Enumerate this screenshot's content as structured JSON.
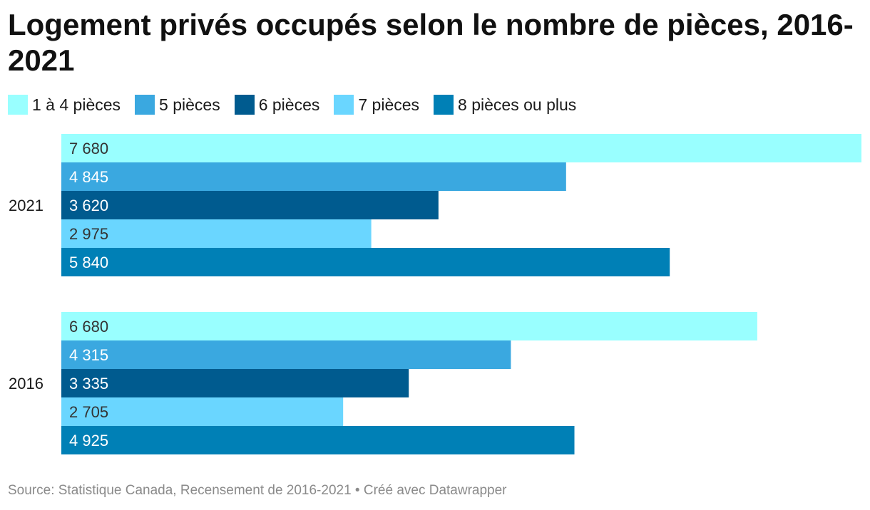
{
  "chart_data": {
    "type": "bar",
    "orientation": "horizontal",
    "title": "Logement privés occupés selon le nombre de pièces, 2016-2021",
    "categories": [
      "2021",
      "2016"
    ],
    "series": [
      {
        "name": "1 à 4 pièces",
        "color": "#99FFFF",
        "values": [
          7680,
          6680
        ],
        "labels": [
          "7 680",
          "6 680"
        ]
      },
      {
        "name": "5 pièces",
        "color": "#3AA8E0",
        "values": [
          4845,
          4315
        ],
        "labels": [
          "4 845",
          "4 315"
        ]
      },
      {
        "name": "6 pièces",
        "color": "#005B8F",
        "values": [
          3620,
          3335
        ],
        "labels": [
          "3 620",
          "3 335"
        ]
      },
      {
        "name": "7 pièces",
        "color": "#6AD6FF",
        "values": [
          2975,
          2705
        ],
        "labels": [
          "2 975",
          "2 705"
        ]
      },
      {
        "name": "8 pièces ou plus",
        "color": "#0080B6",
        "values": [
          5840,
          4925
        ],
        "labels": [
          "5 840",
          "4 925"
        ]
      }
    ],
    "xlim": [
      0,
      7680
    ],
    "grid": false,
    "legend_position": "top-left"
  },
  "source_text": "Source: Statistique Canada, Recensement de 2016-2021 • Créé avec Datawrapper",
  "colors": {
    "label_dark": "#333333",
    "label_light": "#ffffff"
  }
}
